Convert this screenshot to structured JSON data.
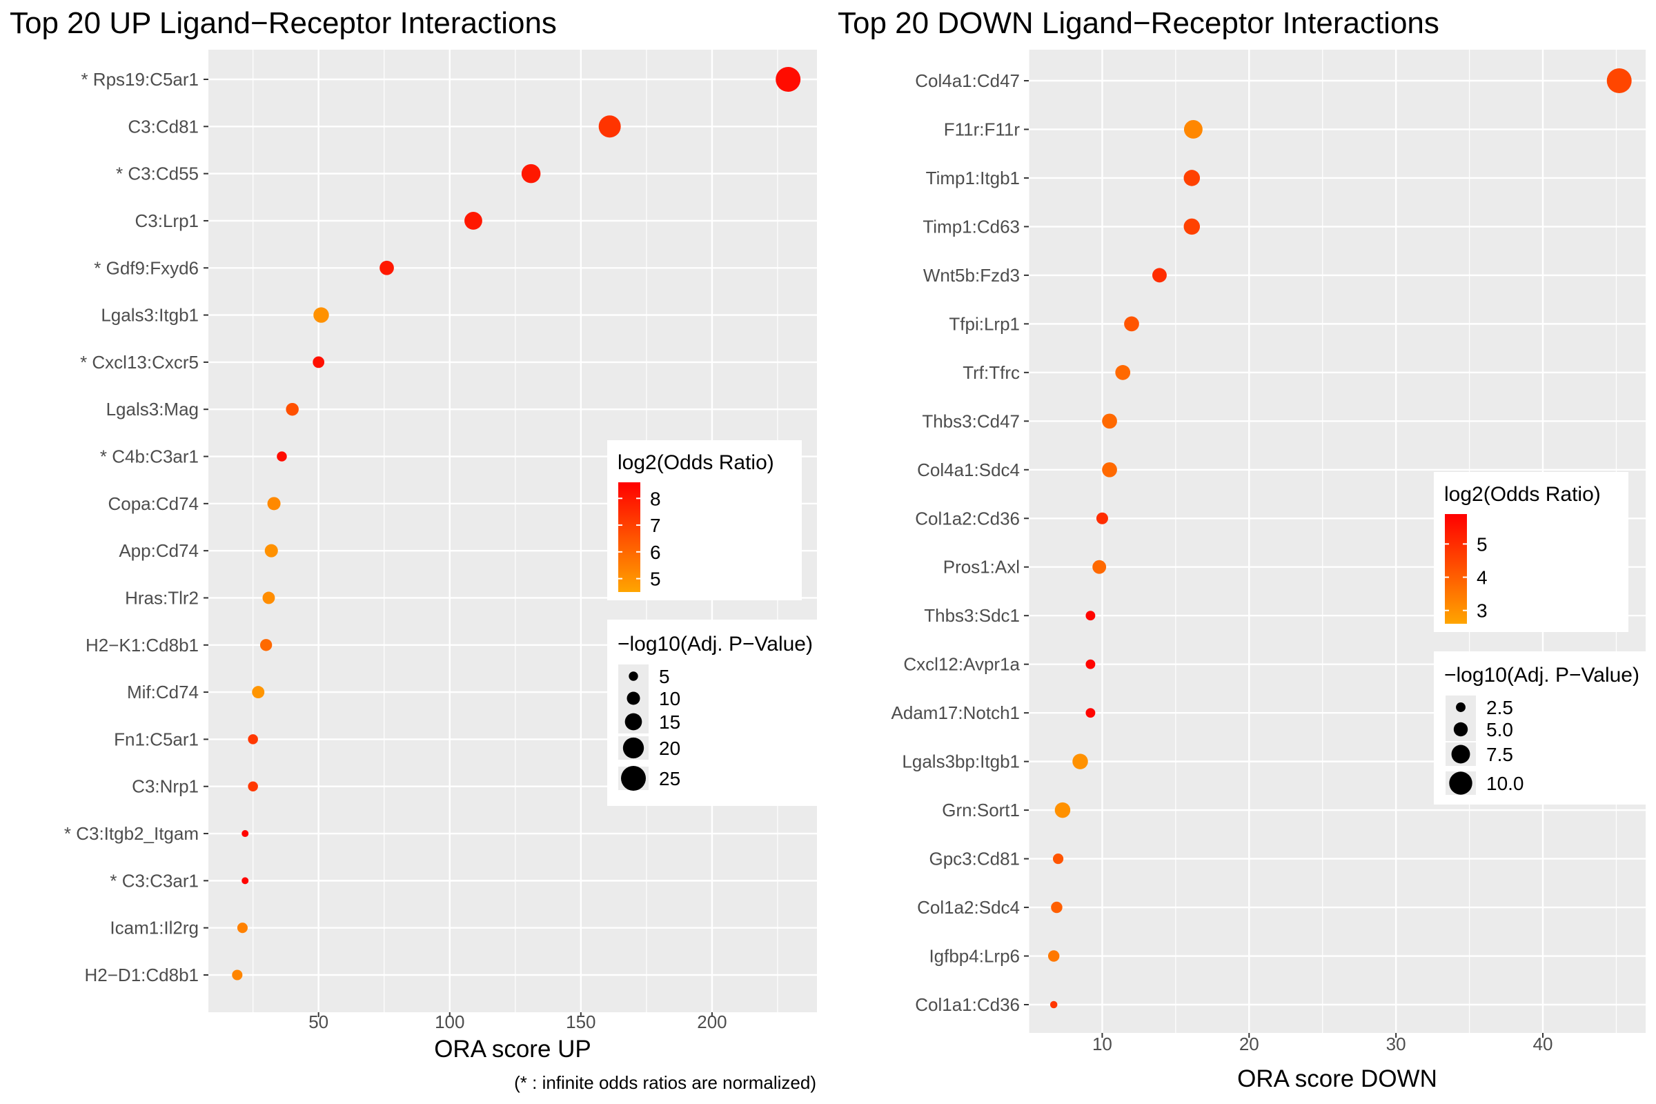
{
  "chart_data": [
    {
      "type": "scatter",
      "title": "Top 20 UP Ligand−Receptor Interactions",
      "xlabel": "ORA score UP",
      "ylabel": "",
      "caption": "(* : infinite odds ratios are normalized)",
      "xlim": [
        8,
        240
      ],
      "xticks": [
        50,
        100,
        150,
        200
      ],
      "xtick_labels": [
        "50",
        "100",
        "150",
        "200"
      ],
      "grid": true,
      "categories": [
        "* Rps19:C5ar1",
        "C3:Cd81",
        "* C3:Cd55",
        "C3:Lrp1",
        "* Gdf9:Fxyd6",
        "Lgals3:Itgb1",
        "* Cxcl13:Cxcr5",
        "Lgals3:Mag",
        "* C4b:C3ar1",
        "Copa:Cd74",
        "App:Cd74",
        "Hras:Tlr2",
        "H2−K1:Cd8b1",
        "Mif:Cd74",
        "Fn1:C5ar1",
        "C3:Nrp1",
        "* C3:Itgb2_Itgam",
        "* C3:C3ar1",
        "Icam1:Il2rg",
        "H2−D1:Cd8b1"
      ],
      "x": [
        229,
        161,
        131,
        109,
        76,
        51,
        50,
        40,
        36,
        33,
        32,
        31,
        30,
        27,
        25,
        25,
        22,
        22,
        21,
        19
      ],
      "log2_odds_ratio": [
        8.3,
        7.3,
        8.0,
        8.0,
        8.0,
        5.0,
        8.2,
        6.6,
        8.3,
        5.2,
        5.0,
        5.1,
        6.0,
        4.9,
        7.2,
        7.2,
        8.5,
        8.5,
        5.4,
        5.3
      ],
      "neg_log10_adj_p": [
        25,
        21.5,
        17.5,
        16,
        11.5,
        13,
        8,
        9.5,
        6,
        10,
        10,
        9,
        8.5,
        9,
        6,
        6,
        2,
        2,
        6.5,
        6.5
      ],
      "color_scale": {
        "low": "#FFA500",
        "high": "#FF0000",
        "min": 4.5,
        "max": 8.6
      },
      "size_scale": {
        "min": 2,
        "max": 25,
        "rmin": 5,
        "rmax": 18
      },
      "legend_color": {
        "title": "log2(Odds Ratio)",
        "breaks": [
          8,
          7,
          6,
          5
        ],
        "labels": [
          "8",
          "7",
          "6",
          "5"
        ],
        "placement": "right"
      },
      "legend_size": {
        "title": "−log10(Adj. P−Value)",
        "breaks": [
          5,
          10,
          15,
          20,
          25
        ],
        "labels": [
          "5",
          "10",
          "15",
          "20",
          "25"
        ],
        "placement": "right"
      }
    },
    {
      "type": "scatter",
      "title": "Top 20 DOWN Ligand−Receptor Interactions",
      "xlabel": "ORA score DOWN",
      "ylabel": "",
      "xlim": [
        5,
        47
      ],
      "xticks": [
        10,
        20,
        30,
        40
      ],
      "xtick_labels": [
        "10",
        "20",
        "30",
        "40"
      ],
      "grid": true,
      "categories": [
        "Col4a1:Cd47",
        "F11r:F11r",
        "Timp1:Itgb1",
        "Timp1:Cd63",
        "Wnt5b:Fzd3",
        "Tfpi:Lrp1",
        "Trf:Tfrc",
        "Thbs3:Cd47",
        "Col4a1:Sdc4",
        "Col1a2:Cd36",
        "Pros1:Axl",
        "Thbs3:Sdc1",
        "Cxcl12:Avpr1a",
        "Adam17:Notch1",
        "Lgals3bp:Itgb1",
        "Grn:Sort1",
        "Gpc3:Cd81",
        "Col1a2:Sdc4",
        "Igfbp4:Lrp6",
        "Col1a1:Cd36"
      ],
      "x": [
        45.2,
        16.2,
        16.1,
        16.1,
        13.9,
        12.0,
        11.4,
        10.5,
        10.5,
        10.0,
        9.8,
        9.2,
        9.2,
        9.2,
        8.5,
        7.3,
        7.0,
        6.9,
        6.7,
        6.7
      ],
      "log2_odds_ratio": [
        4.5,
        3.2,
        4.6,
        4.6,
        5.0,
        4.2,
        3.8,
        3.8,
        3.8,
        5.0,
        3.8,
        5.8,
        5.8,
        5.8,
        3.0,
        3.0,
        4.2,
        4.0,
        3.5,
        4.8
      ],
      "neg_log10_adj_p": [
        11.0,
        7.5,
        6.2,
        6.2,
        5.2,
        5.5,
        5.5,
        5.5,
        5.5,
        3.7,
        4.8,
        2.5,
        2.5,
        2.5,
        5.8,
        5.8,
        3.0,
        3.5,
        3.5,
        1.2
      ],
      "color_scale": {
        "low": "#FFA500",
        "high": "#FF0000",
        "min": 2.6,
        "max": 5.9
      },
      "size_scale": {
        "min": 1,
        "max": 11,
        "rmin": 5,
        "rmax": 18
      },
      "legend_color": {
        "title": "log2(Odds Ratio)",
        "breaks": [
          5,
          4,
          3
        ],
        "labels": [
          "5",
          "4",
          "3"
        ],
        "placement": "right"
      },
      "legend_size": {
        "title": "−log10(Adj. P−Value)",
        "breaks": [
          2.5,
          5.0,
          7.5,
          10.0
        ],
        "labels": [
          "2.5",
          "5.0",
          "7.5",
          "10.0"
        ],
        "placement": "right"
      }
    }
  ]
}
